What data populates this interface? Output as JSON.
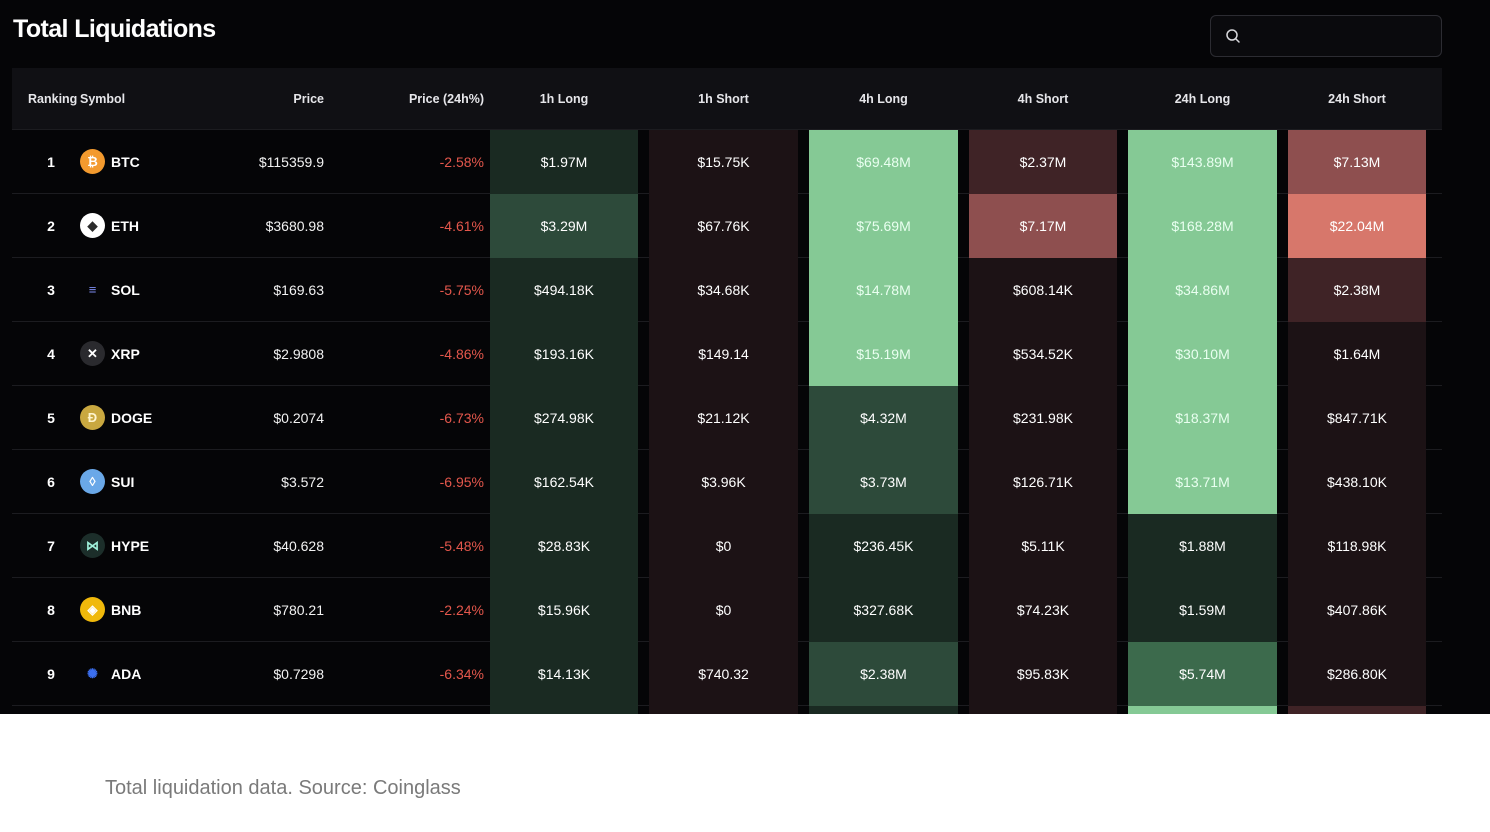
{
  "title": "Total Liquidations",
  "search": {
    "value": "",
    "placeholder": ""
  },
  "columns": [
    "Ranking",
    "Symbol",
    "Price",
    "Price (24h%)",
    "1h Long",
    "1h Short",
    "4h Long",
    "4h Short",
    "24h Long",
    "24h Short"
  ],
  "rows": [
    {
      "rank": "1",
      "symbol": "BTC",
      "price": "$115359.9",
      "change": "-2.58%",
      "h1_long": "$1.97M",
      "h1_short": "$15.75K",
      "h4_long": "$69.48M",
      "h4_short": "$2.37M",
      "h24_long": "$143.89M",
      "h24_short": "$7.13M"
    },
    {
      "rank": "2",
      "symbol": "ETH",
      "price": "$3680.98",
      "change": "-4.61%",
      "h1_long": "$3.29M",
      "h1_short": "$67.76K",
      "h4_long": "$75.69M",
      "h4_short": "$7.17M",
      "h24_long": "$168.28M",
      "h24_short": "$22.04M"
    },
    {
      "rank": "3",
      "symbol": "SOL",
      "price": "$169.63",
      "change": "-5.75%",
      "h1_long": "$494.18K",
      "h1_short": "$34.68K",
      "h4_long": "$14.78M",
      "h4_short": "$608.14K",
      "h24_long": "$34.86M",
      "h24_short": "$2.38M"
    },
    {
      "rank": "4",
      "symbol": "XRP",
      "price": "$2.9808",
      "change": "-4.86%",
      "h1_long": "$193.16K",
      "h1_short": "$149.14",
      "h4_long": "$15.19M",
      "h4_short": "$534.52K",
      "h24_long": "$30.10M",
      "h24_short": "$1.64M"
    },
    {
      "rank": "5",
      "symbol": "DOGE",
      "price": "$0.2074",
      "change": "-6.73%",
      "h1_long": "$274.98K",
      "h1_short": "$21.12K",
      "h4_long": "$4.32M",
      "h4_short": "$231.98K",
      "h24_long": "$18.37M",
      "h24_short": "$847.71K"
    },
    {
      "rank": "6",
      "symbol": "SUI",
      "price": "$3.572",
      "change": "-6.95%",
      "h1_long": "$162.54K",
      "h1_short": "$3.96K",
      "h4_long": "$3.73M",
      "h4_short": "$126.71K",
      "h24_long": "$13.71M",
      "h24_short": "$438.10K"
    },
    {
      "rank": "7",
      "symbol": "HYPE",
      "price": "$40.628",
      "change": "-5.48%",
      "h1_long": "$28.83K",
      "h1_short": "$0",
      "h4_long": "$236.45K",
      "h4_short": "$5.11K",
      "h24_long": "$1.88M",
      "h24_short": "$118.98K"
    },
    {
      "rank": "8",
      "symbol": "BNB",
      "price": "$780.21",
      "change": "-2.24%",
      "h1_long": "$15.96K",
      "h1_short": "$0",
      "h4_long": "$327.68K",
      "h4_short": "$74.23K",
      "h24_long": "$1.59M",
      "h24_short": "$407.86K"
    },
    {
      "rank": "9",
      "symbol": "ADA",
      "price": "$0.7298",
      "change": "-6.34%",
      "h1_long": "$14.13K",
      "h1_short": "$740.32",
      "h4_long": "$2.38M",
      "h4_short": "$95.83K",
      "h24_long": "$5.74M",
      "h24_short": "$286.80K"
    }
  ],
  "colors": {
    "panel_bg": "#050507",
    "header_bg": "#101014",
    "negative_text": "#e4574c",
    "long_low": "#1a2a22",
    "long_mid": "#2d4a3a",
    "long_mid2": "#3c6a4c",
    "long_high": "#85c995",
    "short_low": "#1c1215",
    "short_mid": "#3f2326",
    "short_mid2": "#8e4f4f",
    "short_high": "#d7776b"
  },
  "caption": "Total liquidation data. Source: Coinglass"
}
